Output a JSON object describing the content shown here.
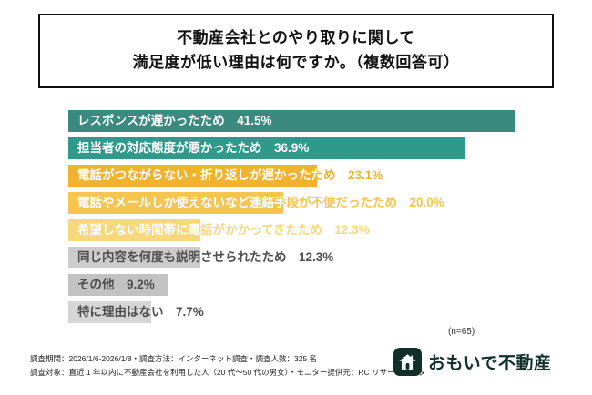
{
  "title": {
    "line1": "不動産会社とのやり取りに関して",
    "line2": "満足度が低い理由は何ですか。（複数回答可）"
  },
  "chart_data": {
    "type": "bar",
    "orientation": "horizontal",
    "title": "不動産会社とのやり取りに関して満足度が低い理由は何ですか。（複数回答可）",
    "categories": [
      "レスポンスが遅かったため",
      "担当者の対応態度が悪かったため",
      "電話がつながらない・折り返しが遅かったため",
      "電話やメールしか使えないなど連絡手段が不便だったため",
      "希望しない時間帯に電話がかかってきたため",
      "同じ内容を何度も説明させられたため",
      "その他",
      "特に理由はない"
    ],
    "values": [
      41.5,
      36.9,
      23.1,
      20.0,
      12.3,
      12.3,
      9.2,
      7.7
    ],
    "value_suffix": "%",
    "xlim": [
      0,
      42.3
    ],
    "grid": false,
    "legend": "none",
    "sample_size_note": "(n=65)",
    "bars": [
      {
        "label": "レスポンスが遅かったため",
        "value_label": "41.5%",
        "pct": 41.5,
        "color": "#3a8a80",
        "text_on": "#ffffff",
        "text_off": "#3a8a80"
      },
      {
        "label": "担当者の対応態度が悪かったため",
        "value_label": "36.9%",
        "pct": 36.9,
        "color": "#2f9a8c",
        "text_on": "#ffffff",
        "text_off": "#2f9a8c"
      },
      {
        "label": "電話がつながらない・折り返しが遅かったため",
        "value_label": "23.1%",
        "pct": 23.1,
        "color": "#f1b32e",
        "text_on": "#ffffff",
        "text_off": "#f1b32e"
      },
      {
        "label": "電話やメールしか使えないなど連絡手段が不便だったため",
        "value_label": "20.0%",
        "pct": 20.0,
        "color": "#f5c54e",
        "text_on": "#ffffff",
        "text_off": "#f5c54e"
      },
      {
        "label": "希望しない時間帯に電話がかかってきたため",
        "value_label": "12.3%",
        "pct": 12.3,
        "color": "#f8d87a",
        "text_on": "#ffffff",
        "text_off": "#f8d87a"
      },
      {
        "label": "同じ内容を何度も説明させられたため",
        "value_label": "12.3%",
        "pct": 12.3,
        "color": "#cccccc",
        "text_on": "#4d4d4d",
        "text_off": "#4d4d4d"
      },
      {
        "label": "その他",
        "value_label": "9.2%",
        "pct": 9.2,
        "color": "#c2c2c2",
        "text_on": "#4d4d4d",
        "text_off": "#4d4d4d"
      },
      {
        "label": "特に理由はない",
        "value_label": "7.7%",
        "pct": 7.7,
        "color": "#d6d6d6",
        "text_on": "#4d4d4d",
        "text_off": "#4d4d4d"
      }
    ]
  },
  "footer": {
    "line1": "調査期間：2026/1/6-2026/1/8・調査方法：インターネット調査・調査人数：325 名",
    "line2": "調査対象：直近 1 年以内に不動産会社を利用した人（20 代～50 代の男女）・モニター提供元：RC リサーチデータ"
  },
  "logo": {
    "text": "おもいで不動産"
  }
}
